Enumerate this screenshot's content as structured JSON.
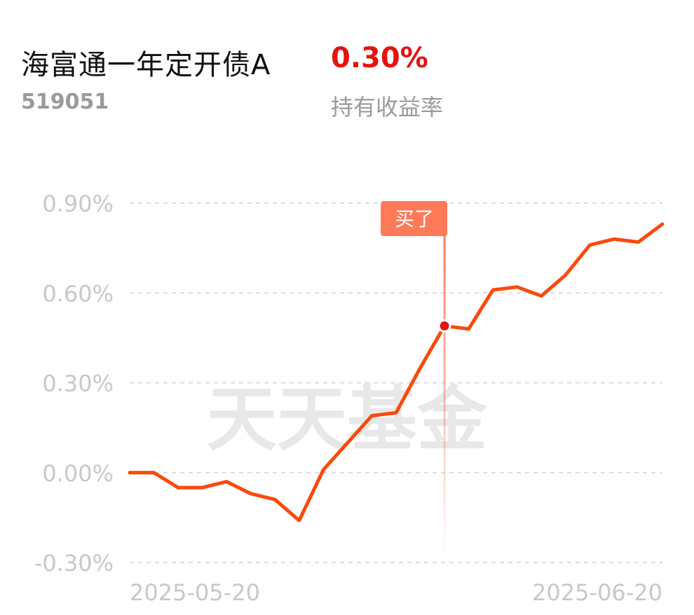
{
  "header": {
    "fund_name": "海富通一年定开债A",
    "fund_code": "519051",
    "return_value": "0.30%",
    "return_label": "持有收益率"
  },
  "colors": {
    "line": "#fa4a0c",
    "marker": "#ff7a59",
    "return_value": "#e5130f",
    "grid": "#dcdcdc",
    "axis_text": "#c8c8c8",
    "watermark": "#e8e8e8"
  },
  "watermark": "天天基金",
  "chart_data": {
    "type": "line",
    "x_ticks": [
      "2025-05-20",
      "2025-06-20"
    ],
    "y_ticks": [
      "0.90%",
      "0.60%",
      "0.30%",
      "0.00%",
      "-0.30%"
    ],
    "y_tick_values": [
      0.9,
      0.6,
      0.3,
      0.0,
      -0.3
    ],
    "ylim": [
      -0.3,
      0.9
    ],
    "grid": "horizontal-dashed",
    "series": [
      {
        "values": [
          0.0,
          0.0,
          -0.05,
          -0.05,
          -0.03,
          -0.07,
          -0.09,
          -0.16,
          0.01,
          0.1,
          0.19,
          0.2,
          0.35,
          0.49,
          0.48,
          0.61,
          0.62,
          0.59,
          0.66,
          0.76,
          0.78,
          0.77,
          0.83
        ]
      }
    ],
    "annotation": {
      "label": "买了",
      "index": 13,
      "value": 0.49
    }
  }
}
